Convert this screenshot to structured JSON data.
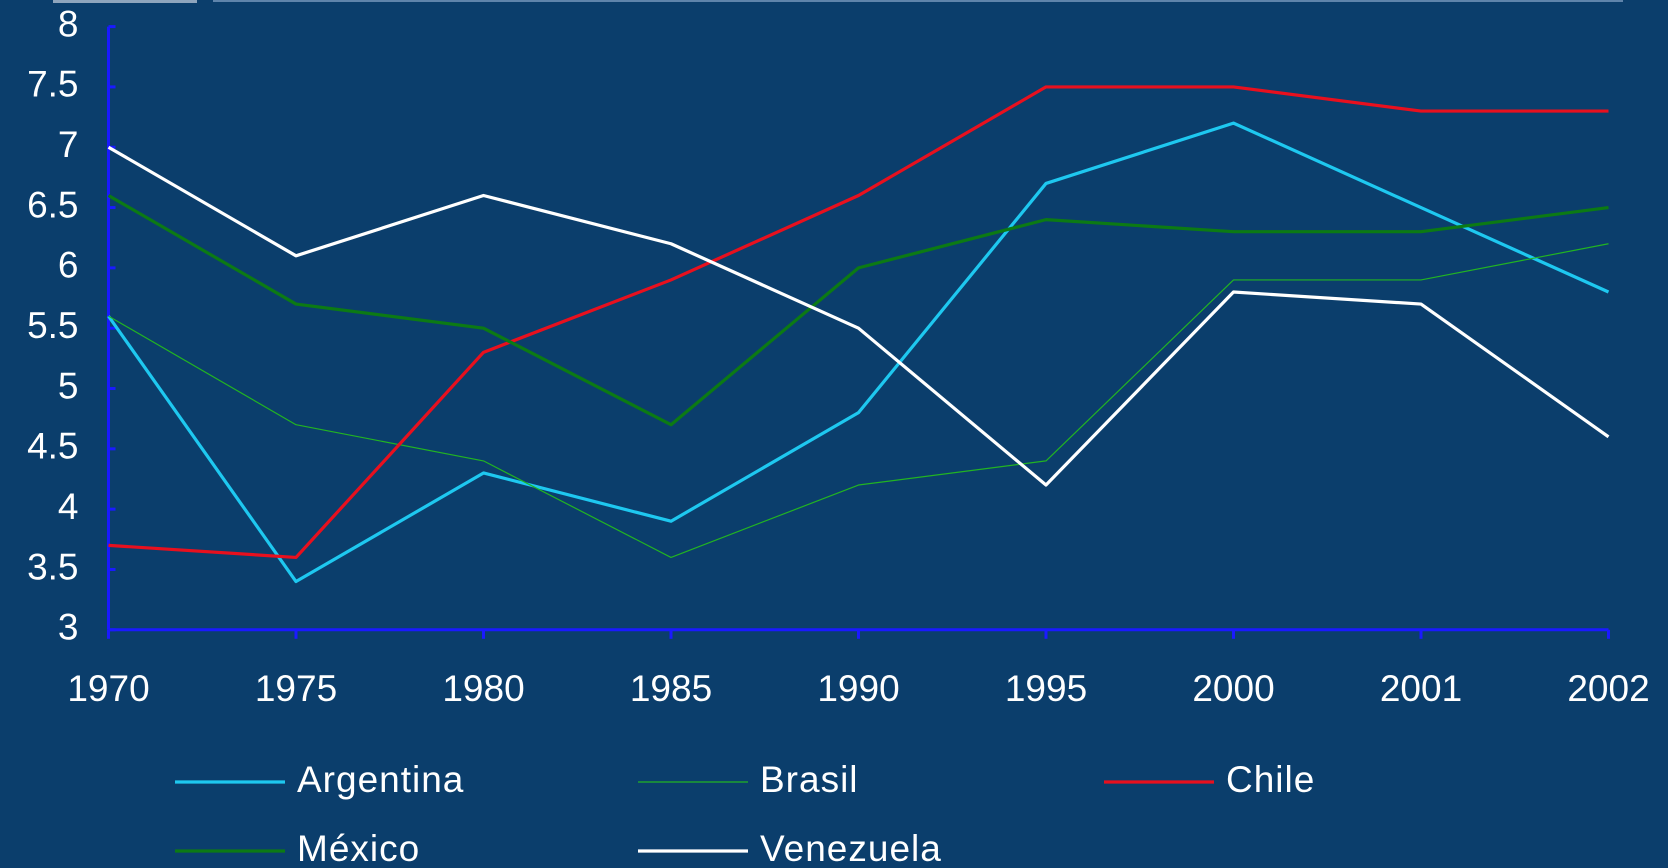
{
  "chart_data": {
    "type": "line",
    "categories": [
      "1970",
      "1975",
      "1980",
      "1985",
      "1990",
      "1995",
      "2000",
      "2001",
      "2002"
    ],
    "series": [
      {
        "name": "Argentina",
        "color": "#1ec8f0",
        "values": [
          5.6,
          3.4,
          4.3,
          3.9,
          4.8,
          6.7,
          7.2,
          6.5,
          5.8
        ]
      },
      {
        "name": "Brasil",
        "color": "#22b422",
        "values": [
          5.6,
          4.7,
          4.4,
          3.6,
          4.2,
          4.4,
          5.9,
          5.9,
          6.2
        ]
      },
      {
        "name": "Chile",
        "color": "#e8101e",
        "values": [
          3.7,
          3.6,
          5.3,
          5.9,
          6.6,
          7.5,
          7.5,
          7.3,
          7.3
        ]
      },
      {
        "name": "México",
        "color": "#0c7a14",
        "values": [
          6.6,
          5.7,
          5.5,
          4.7,
          6.0,
          6.4,
          6.3,
          6.3,
          6.5
        ]
      },
      {
        "name": "Venezuela",
        "color": "#ffffff",
        "values": [
          7.0,
          6.1,
          6.6,
          6.2,
          5.5,
          4.2,
          5.8,
          5.7,
          4.6
        ]
      }
    ],
    "ylim": [
      3,
      8
    ],
    "yticks": [
      3,
      3.5,
      4,
      4.5,
      5,
      5.5,
      6,
      6.5,
      7,
      7.5,
      8
    ],
    "legend": "bottom"
  }
}
